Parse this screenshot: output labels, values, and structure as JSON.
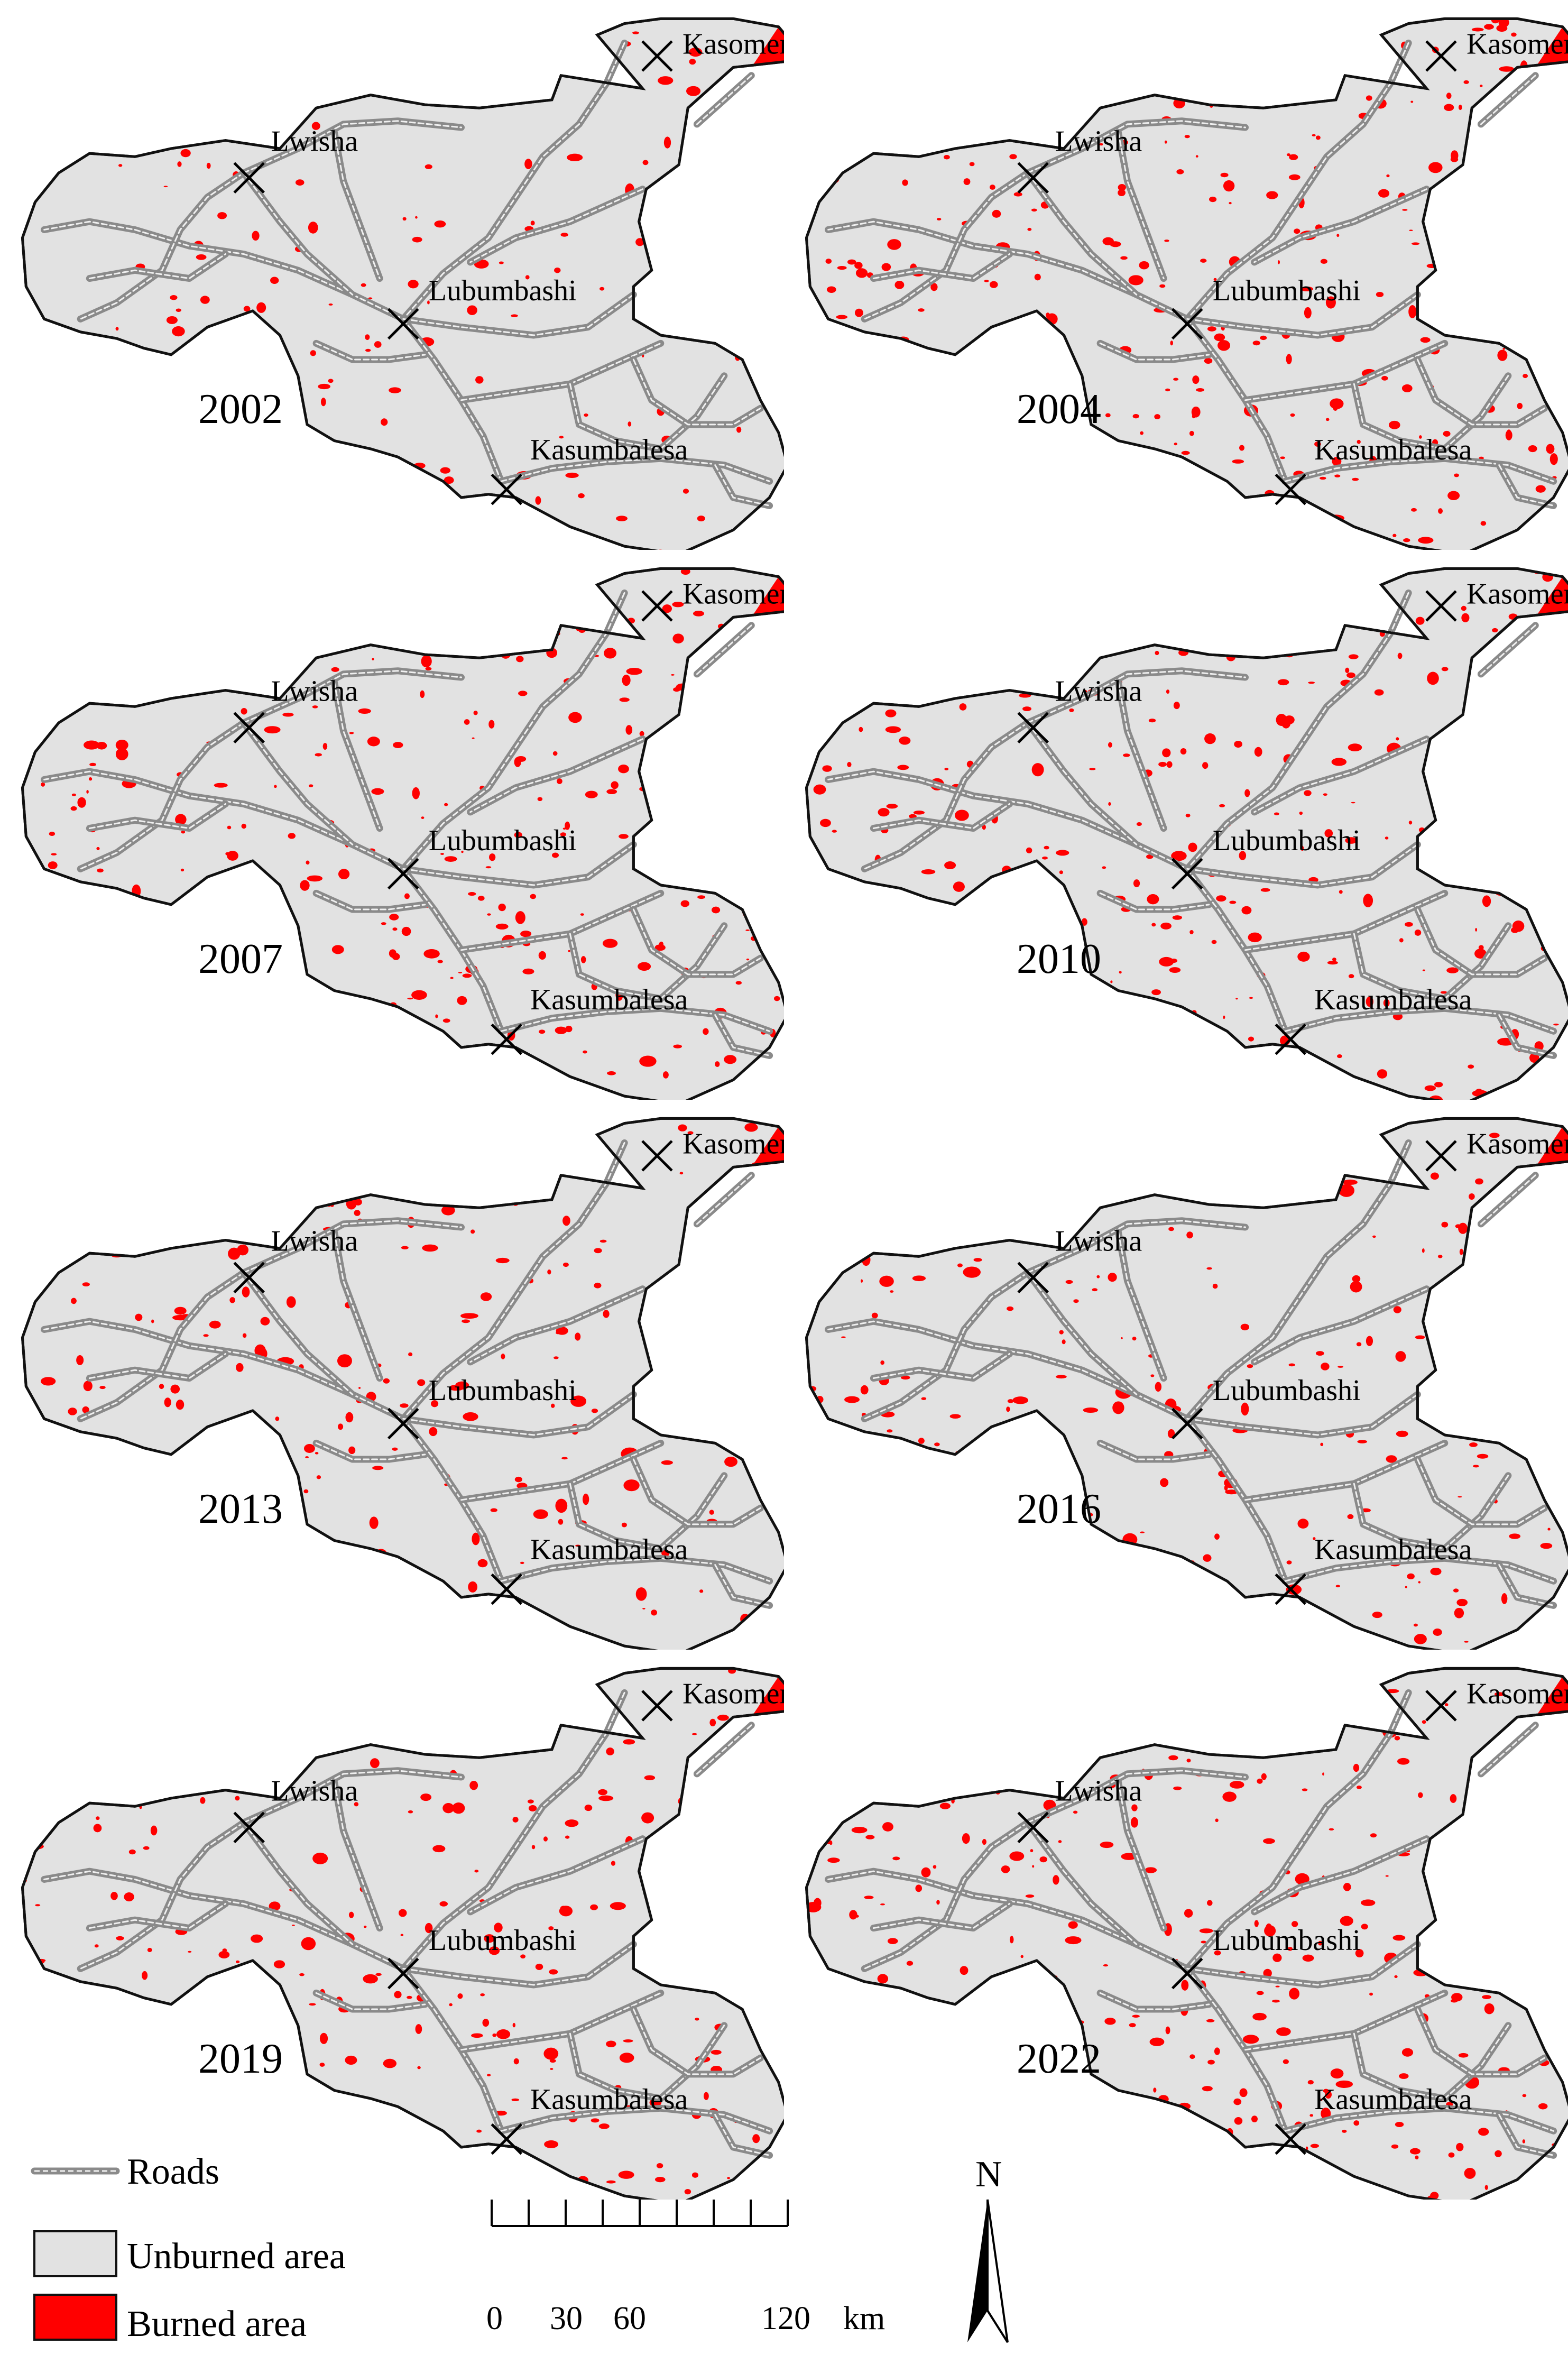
{
  "maps": [
    {
      "year": "2002",
      "burn_level": 0.18,
      "seed": 11,
      "year_pos": "left"
    },
    {
      "year": "2004",
      "burn_level": 0.42,
      "seed": 23,
      "year_pos": "left"
    },
    {
      "year": "2007",
      "burn_level": 0.36,
      "seed": 37,
      "year_pos": "left"
    },
    {
      "year": "2010",
      "burn_level": 0.4,
      "seed": 41,
      "year_pos": "left"
    },
    {
      "year": "2013",
      "burn_level": 0.3,
      "seed": 53,
      "year_pos": "left"
    },
    {
      "year": "2016",
      "burn_level": 0.3,
      "seed": 67,
      "year_pos": "left"
    },
    {
      "year": "2019",
      "burn_level": 0.32,
      "seed": 71,
      "year_pos": "left"
    },
    {
      "year": "2022",
      "burn_level": 0.38,
      "seed": 89,
      "year_pos": "left"
    }
  ],
  "cities": [
    "Kasomeno",
    "Lwisha",
    "Lubumbashi",
    "Kasumbalesa"
  ],
  "legend": {
    "roads": "Roads",
    "unburned": "Unburned area",
    "burned": "Burned area"
  },
  "scale_bar": {
    "labels": [
      "0",
      "30",
      "60",
      "120"
    ],
    "unit": "km"
  },
  "north_arrow": {
    "label": "N"
  },
  "colors": {
    "burned": "#ff0000",
    "unburned": "#e2e2e2",
    "roads": "#8a8a8a",
    "outline": "#111111"
  }
}
